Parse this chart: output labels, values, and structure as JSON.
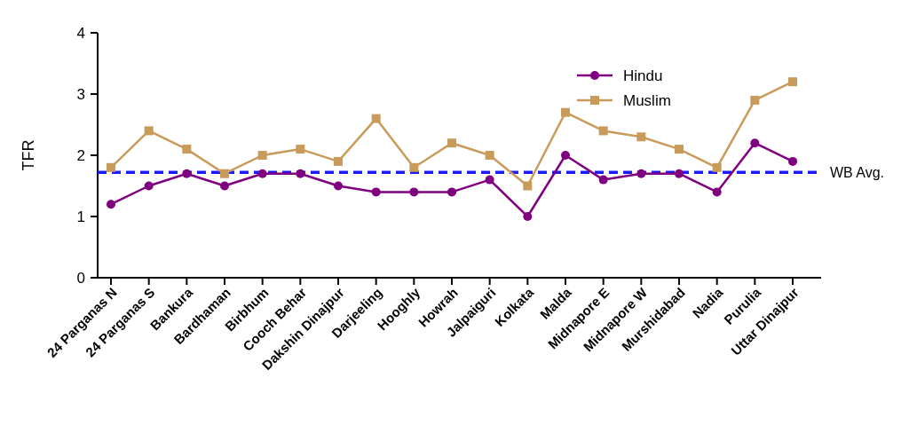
{
  "chart_data": {
    "type": "line",
    "ylabel": "TFR",
    "categories": [
      "24 Parganas N",
      "24 Parganas S",
      "Bankura",
      "Bardhaman",
      "Birbhum",
      "Cooch Behar",
      "Dakshin Dinajpur",
      "Darjeeling",
      "Hooghly",
      "Howrah",
      "Jalpaiguri",
      "Kolkata",
      "Malda",
      "Midnapore E",
      "Midnapore W",
      "Murshidabad",
      "Nadia",
      "Purulia",
      "Uttar Dinajpur"
    ],
    "series": [
      {
        "name": "Hindu",
        "color": "#800080",
        "marker": "circle",
        "values": [
          1.2,
          1.5,
          1.7,
          1.5,
          1.7,
          1.7,
          1.5,
          1.4,
          1.4,
          1.4,
          1.6,
          1.0,
          2.0,
          1.6,
          1.7,
          1.7,
          1.4,
          2.2,
          1.9
        ]
      },
      {
        "name": "Muslim",
        "color": "#c89b5a",
        "marker": "square",
        "values": [
          1.8,
          2.4,
          2.1,
          1.7,
          2.0,
          2.1,
          1.9,
          2.6,
          1.8,
          2.2,
          2.0,
          1.5,
          2.7,
          2.4,
          2.3,
          2.1,
          1.8,
          2.9,
          3.2
        ]
      }
    ],
    "ylim": [
      0,
      4
    ],
    "yticks": [
      0,
      1,
      2,
      3,
      4
    ],
    "grid": false,
    "legend": "top right",
    "line_style": "solid",
    "ref_lines": [
      {
        "axis": "y",
        "value": 1.72,
        "label": "WB Avg.",
        "color": "#1a1aff",
        "line_style": "dashed"
      }
    ]
  }
}
